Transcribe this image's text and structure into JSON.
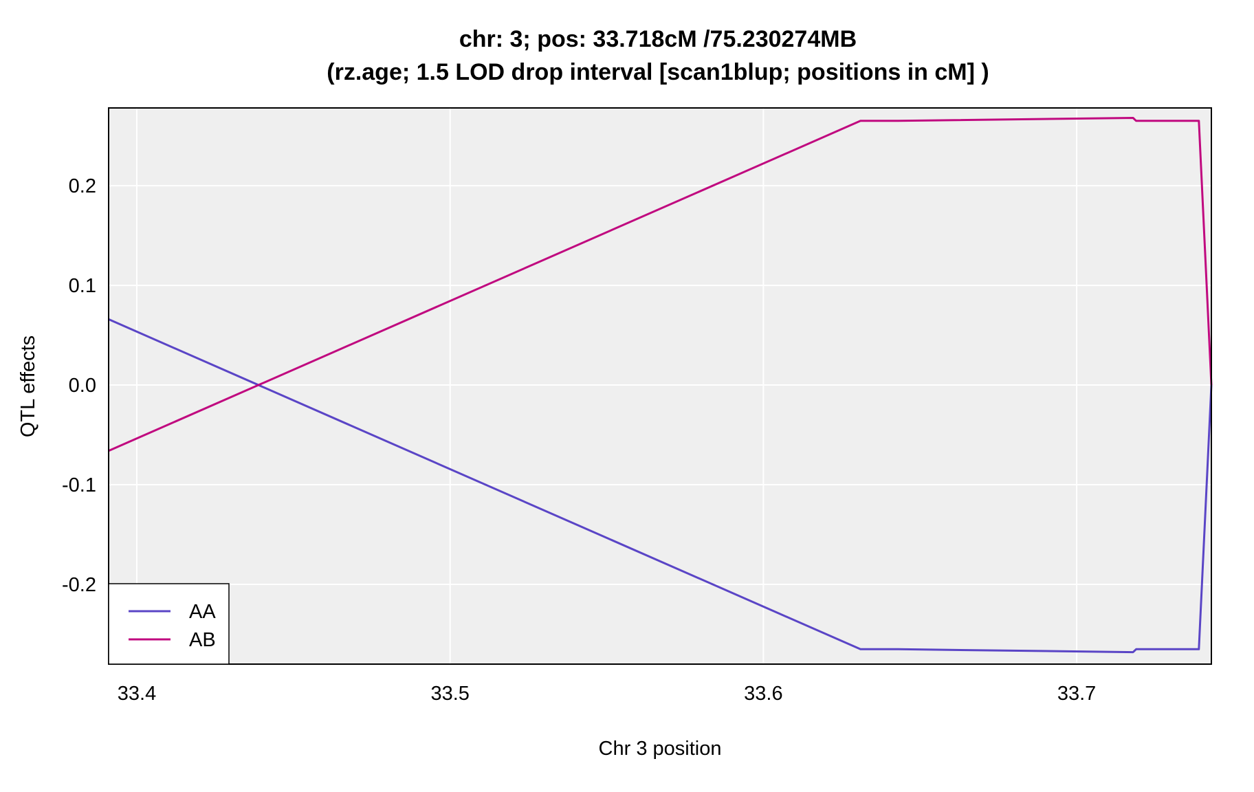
{
  "chart_data": {
    "type": "line",
    "title": "chr: 3; pos: 33.718cM /75.230274MB",
    "subtitle": "(rz.age; 1.5 LOD drop interval [scan1blup; positions in cM] )",
    "xlabel": "Chr 3 position",
    "ylabel": "QTL effects",
    "xlim": [
      33.391,
      33.743
    ],
    "ylim": [
      -0.28,
      0.278
    ],
    "xticks": [
      33.4,
      33.5,
      33.6,
      33.7
    ],
    "xtick_labels": [
      "33.4",
      "33.5",
      "33.6",
      "33.7"
    ],
    "yticks": [
      -0.2,
      -0.1,
      0.0,
      0.1,
      0.2
    ],
    "ytick_labels": [
      "-0.2",
      "-0.1",
      "0.0",
      "0.1",
      "0.2"
    ],
    "grid": true,
    "legend_position": "bottom-left",
    "series": [
      {
        "name": "AA",
        "color": "#5a45c6",
        "x": [
          33.391,
          33.631,
          33.643,
          33.718,
          33.719,
          33.739,
          33.743
        ],
        "y": [
          0.066,
          -0.265,
          -0.265,
          -0.268,
          -0.265,
          -0.265,
          0.0
        ]
      },
      {
        "name": "AB",
        "color": "#c0097f",
        "x": [
          33.391,
          33.631,
          33.643,
          33.718,
          33.719,
          33.739,
          33.743
        ],
        "y": [
          -0.066,
          0.265,
          0.265,
          0.268,
          0.265,
          0.265,
          0.0
        ]
      }
    ]
  },
  "colors": {
    "panel_background": "#efefef",
    "grid": "#ffffff",
    "frame": "#000000"
  }
}
